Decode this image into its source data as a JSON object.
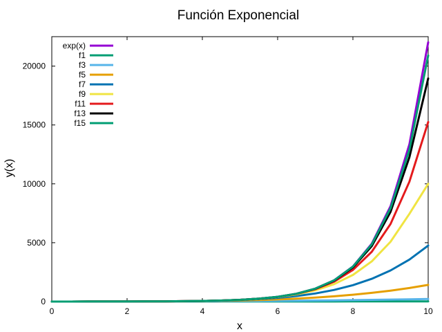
{
  "chart_data": {
    "type": "line",
    "title": "Función Exponencial",
    "xlabel": "x",
    "ylabel": "y(x)",
    "xlim": [
      0,
      10
    ],
    "ylim": [
      0,
      22500
    ],
    "xticks": [
      0,
      2,
      4,
      6,
      8,
      10
    ],
    "yticks": [
      0,
      5000,
      10000,
      15000,
      20000
    ],
    "grid": false,
    "legend_position": "top-left",
    "x": [
      0,
      0.5,
      1,
      1.5,
      2,
      2.5,
      3,
      3.5,
      4,
      4.5,
      5,
      5.5,
      6,
      6.5,
      7,
      7.5,
      8,
      8.5,
      9,
      9.5,
      10
    ],
    "series": [
      {
        "name": "exp(x)",
        "color": "#9400d3",
        "values": [
          1,
          2,
          3,
          4,
          7,
          12,
          20,
          33,
          55,
          90,
          148,
          245,
          403,
          665,
          1097,
          1808,
          2981,
          4915,
          8103,
          13360,
          22026
        ]
      },
      {
        "name": "f1",
        "color": "#009e73",
        "values": [
          1,
          1.5,
          2,
          2.5,
          3,
          3.5,
          4,
          4.5,
          5,
          5.5,
          6,
          6.5,
          7,
          7.5,
          8,
          8.5,
          9,
          9.5,
          10,
          10.5,
          11
        ]
      },
      {
        "name": "f3",
        "color": "#56b4e9",
        "values": [
          1,
          2,
          3,
          4,
          6,
          9,
          13,
          17,
          23,
          30,
          39,
          49,
          61,
          75,
          89,
          107,
          126,
          146,
          170,
          195,
          223
        ]
      },
      {
        "name": "f5",
        "color": "#e69f00",
        "values": [
          1,
          2,
          3,
          4,
          7,
          12,
          18,
          26,
          42,
          62,
          91,
          131,
          184,
          253,
          340,
          448,
          580,
          739,
          929,
          1153,
          1413
        ]
      },
      {
        "name": "f7",
        "color": "#0072b2",
        "values": [
          1,
          2,
          3,
          4,
          7,
          12,
          19,
          31,
          54,
          85,
          135,
          209,
          318,
          472,
          689,
          987,
          1392,
          1932,
          2641,
          3564,
          4750
        ]
      },
      {
        "name": "f9",
        "color": "#f0e442",
        "values": [
          1,
          2,
          3,
          4,
          7,
          12,
          20,
          33,
          55,
          89,
          145,
          236,
          380,
          606,
          954,
          1480,
          2264,
          3414,
          5079,
          7450,
          10000
        ]
      },
      {
        "name": "f11",
        "color": "#e41a1c",
        "values": [
          1,
          2,
          3,
          4,
          7,
          12,
          20,
          33,
          55,
          90,
          148,
          244,
          398,
          650,
          1053,
          1690,
          2686,
          4229,
          6594,
          10181,
          15250
        ]
      },
      {
        "name": "f13",
        "color": "#000000",
        "values": [
          1,
          2,
          3,
          4,
          7,
          12,
          20,
          33,
          55,
          90,
          148,
          245,
          402,
          661,
          1085,
          1776,
          2898,
          4709,
          7617,
          12259,
          18950
        ]
      },
      {
        "name": "f15",
        "color": "#009e73",
        "values": [
          1,
          2,
          3,
          4,
          7,
          12,
          20,
          33,
          55,
          90,
          148,
          245,
          403,
          665,
          1096,
          1804,
          2964,
          4856,
          7930,
          12895,
          20900
        ]
      }
    ]
  }
}
